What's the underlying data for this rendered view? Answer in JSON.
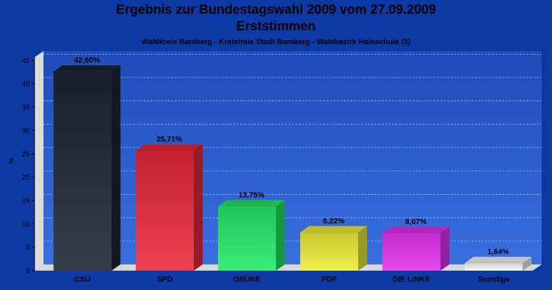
{
  "chart_data": {
    "type": "bar",
    "title_line_1": "Ergebnis zur Bundestagswahl 2009 vom 27.09.2009",
    "title_line_2": "Erststimmen",
    "subtitle": "Wahlkreis Bamberg - Kreisfreie Stadt Bamberg - Wahlbezirk Hainschule (3)",
    "ylabel": "%",
    "xlabel": "",
    "ylim": [
      0,
      48
    ],
    "yticks": [
      0,
      5,
      10,
      15,
      20,
      25,
      30,
      35,
      40,
      45
    ],
    "grid": true,
    "categories": [
      "CSU",
      "SPD",
      "GRÜNE",
      "FDP",
      "DIE LINKE",
      "Sonstige"
    ],
    "values": [
      42.6,
      25.71,
      13.75,
      8.22,
      8.07,
      1.64
    ],
    "value_labels": [
      "42,60%",
      "25,71%",
      "13,75%",
      "8,22%",
      "8,07%",
      "1,64%"
    ],
    "colors": [
      "#1c2433",
      "#e8283a",
      "#22ea66",
      "#ecec36",
      "#e431ef",
      "#f4f4f4"
    ],
    "background": "#0b3aa4"
  }
}
